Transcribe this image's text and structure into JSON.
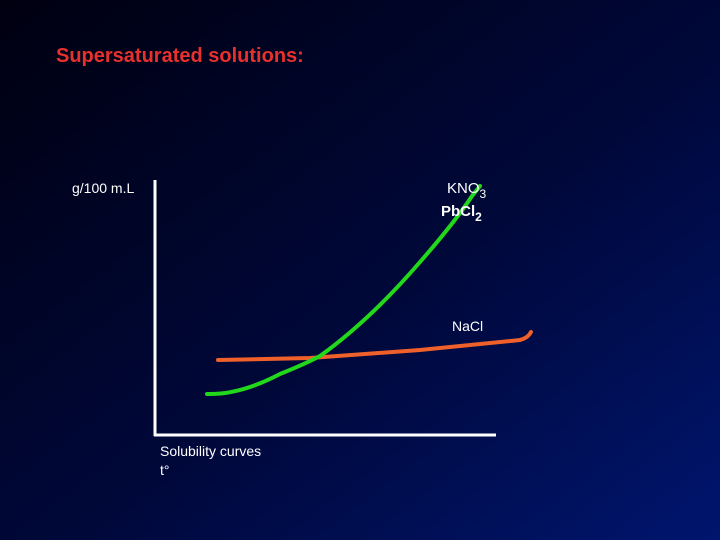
{
  "title": "Supersaturated solutions:",
  "y_label": "g/100 m.L",
  "curve_labels": [
    {
      "text": "KNO",
      "subscript": "3"
    },
    {
      "text": "PbCl",
      "subscript": "2"
    },
    {
      "text": "NaCl"
    }
  ],
  "x_caption": "Solubility curves",
  "x_label": "t°"
}
